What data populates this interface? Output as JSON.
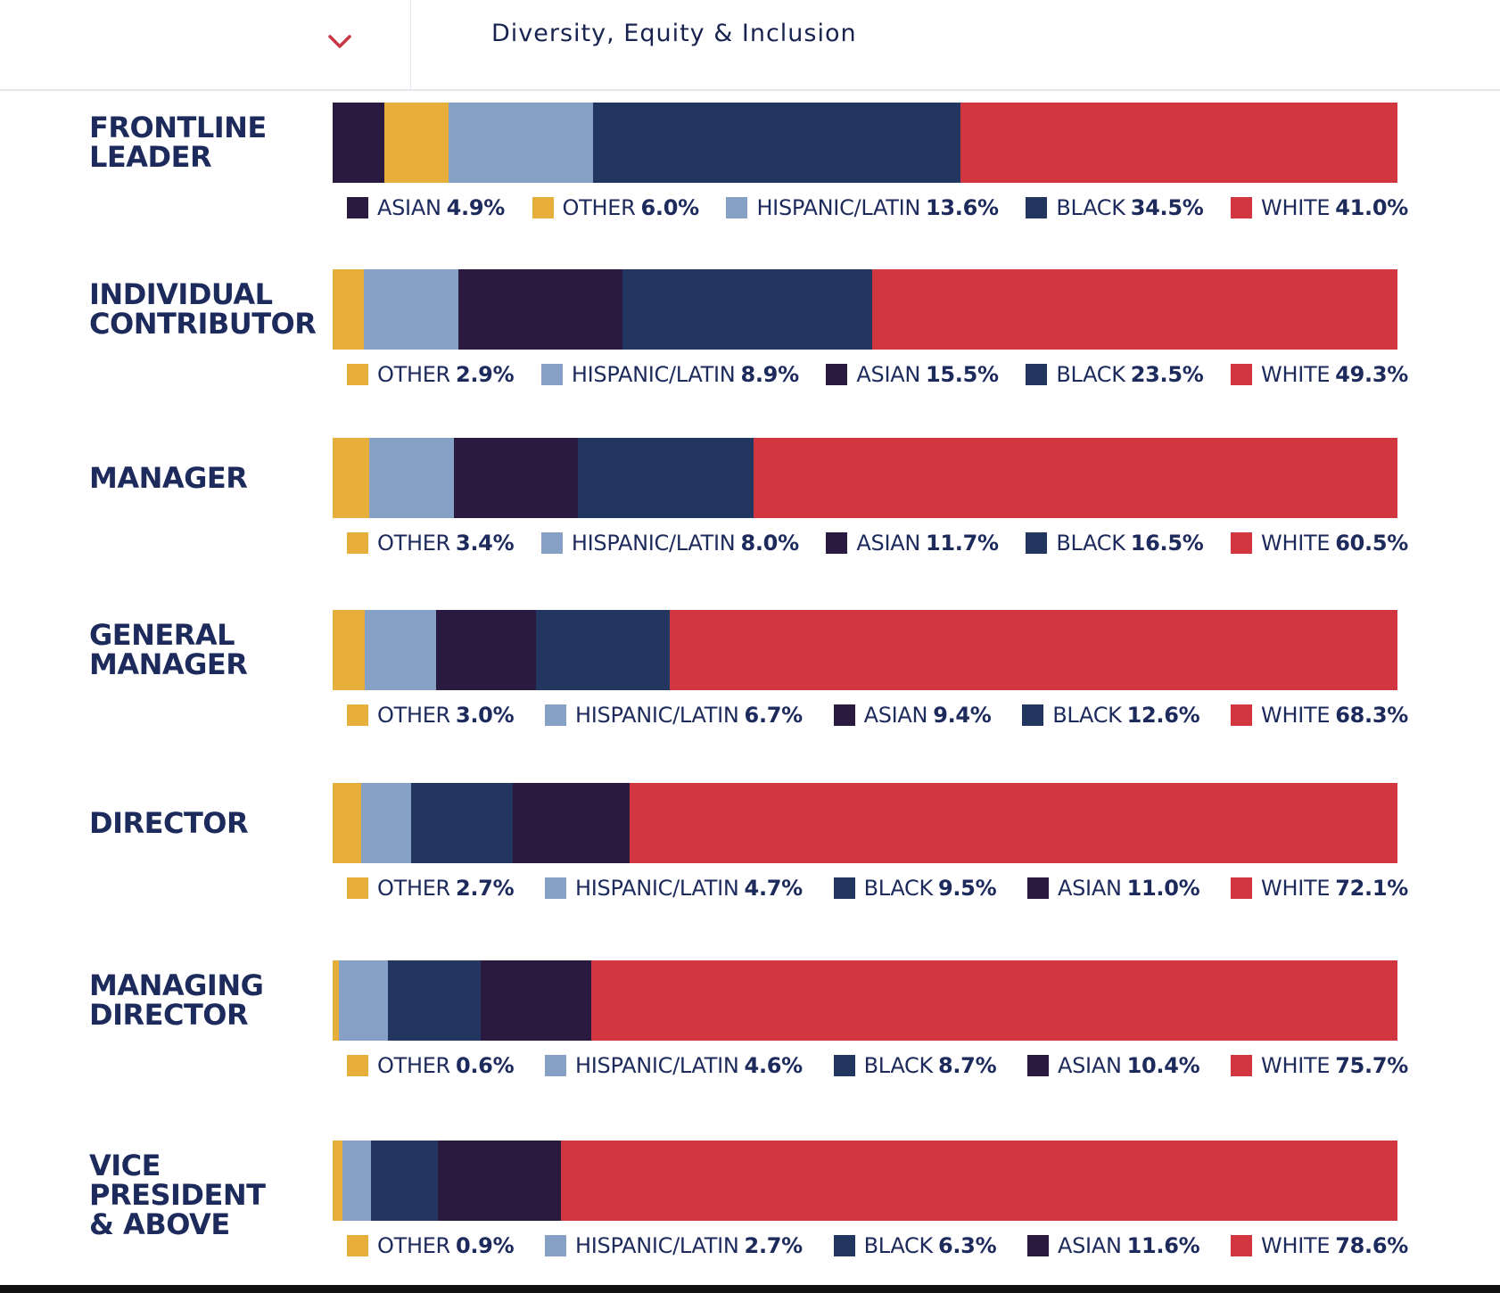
{
  "header": {
    "title": "Diversity, Equity & Inclusion",
    "dropdown_icon": "chevron-down-icon",
    "accent_color": "#c83441"
  },
  "colors": {
    "ASIAN": "#2b1a40",
    "OTHER": "#e8ae3a",
    "HISPANIC/LATIN": "#87a0c5",
    "BLACK": "#233660",
    "WHITE": "#d23641"
  },
  "chart_data": {
    "type": "bar",
    "orientation": "horizontal-stacked",
    "unit": "%",
    "xlim": [
      0,
      100
    ],
    "rows": [
      {
        "label_lines": [
          "FRONTLINE",
          "LEADER"
        ],
        "segments": [
          {
            "name": "ASIAN",
            "value": 4.9,
            "display": "4.9%"
          },
          {
            "name": "OTHER",
            "value": 6.0,
            "display": "6.0%"
          },
          {
            "name": "HISPANIC/LATIN",
            "value": 13.6,
            "display": "13.6%"
          },
          {
            "name": "BLACK",
            "value": 34.5,
            "display": "34.5%"
          },
          {
            "name": "WHITE",
            "value": 41.0,
            "display": "41.0%"
          }
        ]
      },
      {
        "label_lines": [
          "INDIVIDUAL",
          "CONTRIBUTOR"
        ],
        "segments": [
          {
            "name": "OTHER",
            "value": 2.9,
            "display": "2.9%"
          },
          {
            "name": "HISPANIC/LATIN",
            "value": 8.9,
            "display": "8.9%"
          },
          {
            "name": "ASIAN",
            "value": 15.5,
            "display": "15.5%"
          },
          {
            "name": "BLACK",
            "value": 23.5,
            "display": "23.5%"
          },
          {
            "name": "WHITE",
            "value": 49.3,
            "display": "49.3%"
          }
        ]
      },
      {
        "label_lines": [
          "MANAGER"
        ],
        "segments": [
          {
            "name": "OTHER",
            "value": 3.4,
            "display": "3.4%"
          },
          {
            "name": "HISPANIC/LATIN",
            "value": 8.0,
            "display": "8.0%"
          },
          {
            "name": "ASIAN",
            "value": 11.7,
            "display": "11.7%"
          },
          {
            "name": "BLACK",
            "value": 16.5,
            "display": "16.5%"
          },
          {
            "name": "WHITE",
            "value": 60.5,
            "display": "60.5%"
          }
        ]
      },
      {
        "label_lines": [
          "GENERAL",
          "MANAGER"
        ],
        "segments": [
          {
            "name": "OTHER",
            "value": 3.0,
            "display": "3.0%"
          },
          {
            "name": "HISPANIC/LATIN",
            "value": 6.7,
            "display": "6.7%"
          },
          {
            "name": "ASIAN",
            "value": 9.4,
            "display": "9.4%"
          },
          {
            "name": "BLACK",
            "value": 12.6,
            "display": "12.6%"
          },
          {
            "name": "WHITE",
            "value": 68.3,
            "display": "68.3%"
          }
        ]
      },
      {
        "label_lines": [
          "DIRECTOR"
        ],
        "segments": [
          {
            "name": "OTHER",
            "value": 2.7,
            "display": "2.7%"
          },
          {
            "name": "HISPANIC/LATIN",
            "value": 4.7,
            "display": "4.7%"
          },
          {
            "name": "BLACK",
            "value": 9.5,
            "display": "9.5%"
          },
          {
            "name": "ASIAN",
            "value": 11.0,
            "display": "11.0%"
          },
          {
            "name": "WHITE",
            "value": 72.1,
            "display": "72.1%"
          }
        ]
      },
      {
        "label_lines": [
          "MANAGING",
          "DIRECTOR"
        ],
        "segments": [
          {
            "name": "OTHER",
            "value": 0.6,
            "display": "0.6%"
          },
          {
            "name": "HISPANIC/LATIN",
            "value": 4.6,
            "display": "4.6%"
          },
          {
            "name": "BLACK",
            "value": 8.7,
            "display": "8.7%"
          },
          {
            "name": "ASIAN",
            "value": 10.4,
            "display": "10.4%"
          },
          {
            "name": "WHITE",
            "value": 75.7,
            "display": "75.7%"
          }
        ]
      },
      {
        "label_lines": [
          "VICE PRESIDENT",
          "& ABOVE"
        ],
        "segments": [
          {
            "name": "OTHER",
            "value": 0.9,
            "display": "0.9%"
          },
          {
            "name": "HISPANIC/LATIN",
            "value": 2.7,
            "display": "2.7%"
          },
          {
            "name": "BLACK",
            "value": 6.3,
            "display": "6.3%"
          },
          {
            "name": "ASIAN",
            "value": 11.6,
            "display": "11.6%"
          },
          {
            "name": "WHITE",
            "value": 78.6,
            "display": "78.6%"
          }
        ]
      }
    ]
  }
}
